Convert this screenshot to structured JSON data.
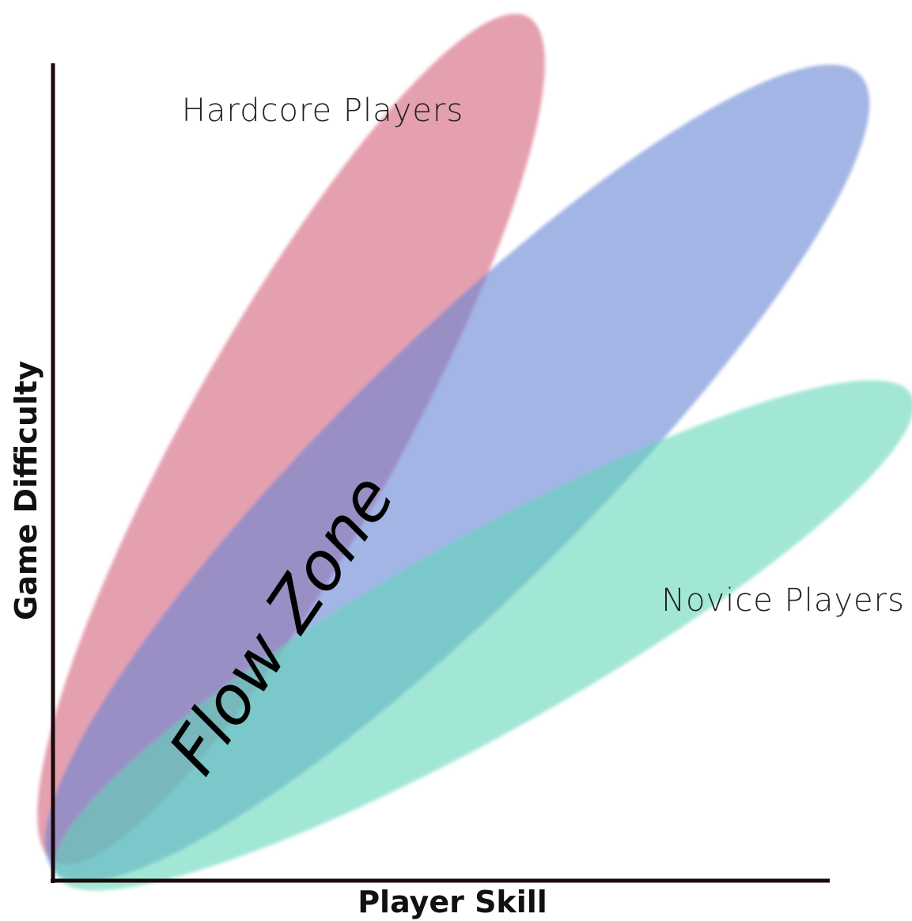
{
  "axes": {
    "y_label": "Game Difficulty",
    "x_label": "Player Skill"
  },
  "regions": [
    {
      "label": "Hardcore Players"
    },
    {
      "label": "Novice Players"
    }
  ],
  "annotation": "Flow Zone"
}
